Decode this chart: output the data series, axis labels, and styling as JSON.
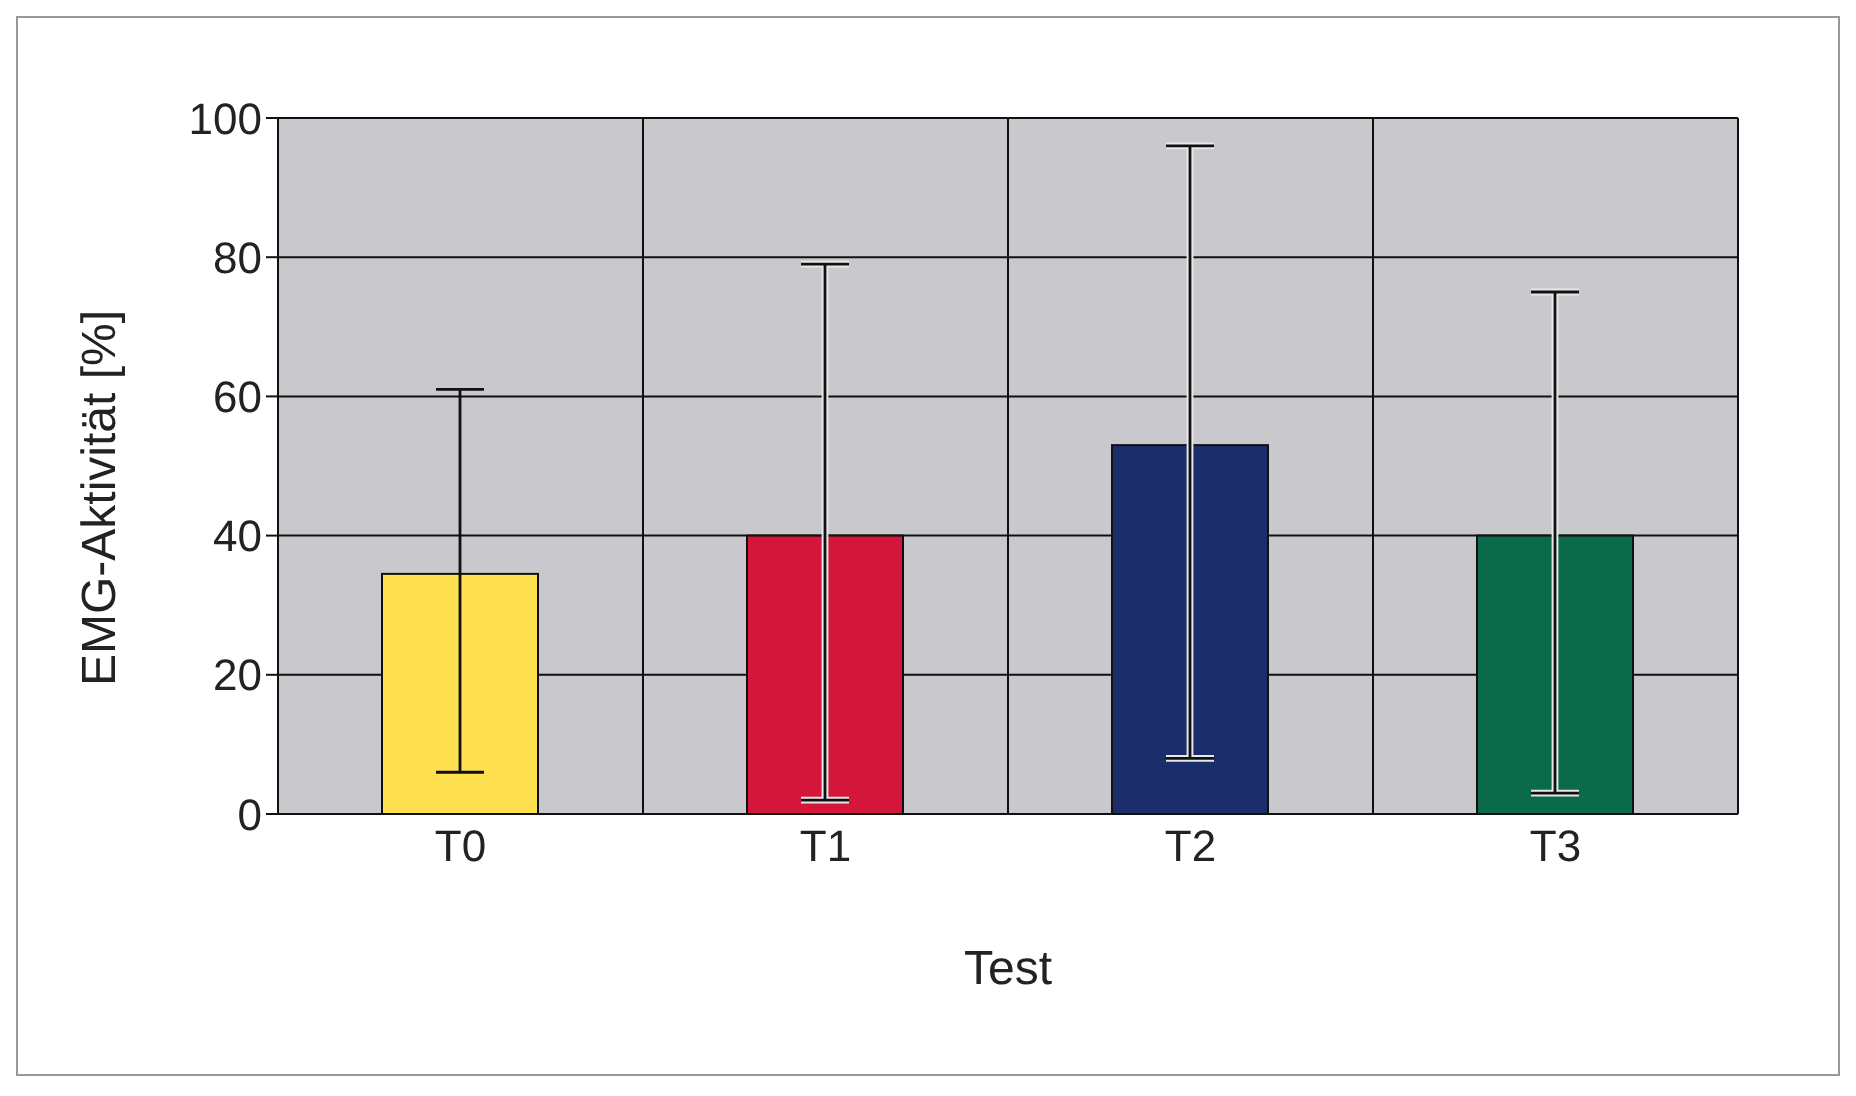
{
  "chart_data": {
    "type": "bar",
    "xlabel": "Test",
    "ylabel": "EMG-Aktivität [%]",
    "categories": [
      "T0",
      "T1",
      "T2",
      "T3"
    ],
    "values": [
      34.5,
      40,
      53,
      40
    ],
    "colors": [
      "#ffe14f",
      "#d4163a",
      "#1b2d6b",
      "#0a6a4a"
    ],
    "errors": [
      [
        6,
        61
      ],
      [
        2,
        79
      ],
      [
        8,
        96
      ],
      [
        3,
        75
      ]
    ],
    "ylim": [
      0,
      100
    ],
    "yticks": [
      0,
      20,
      40,
      60,
      80,
      100
    ],
    "grid": true
  }
}
